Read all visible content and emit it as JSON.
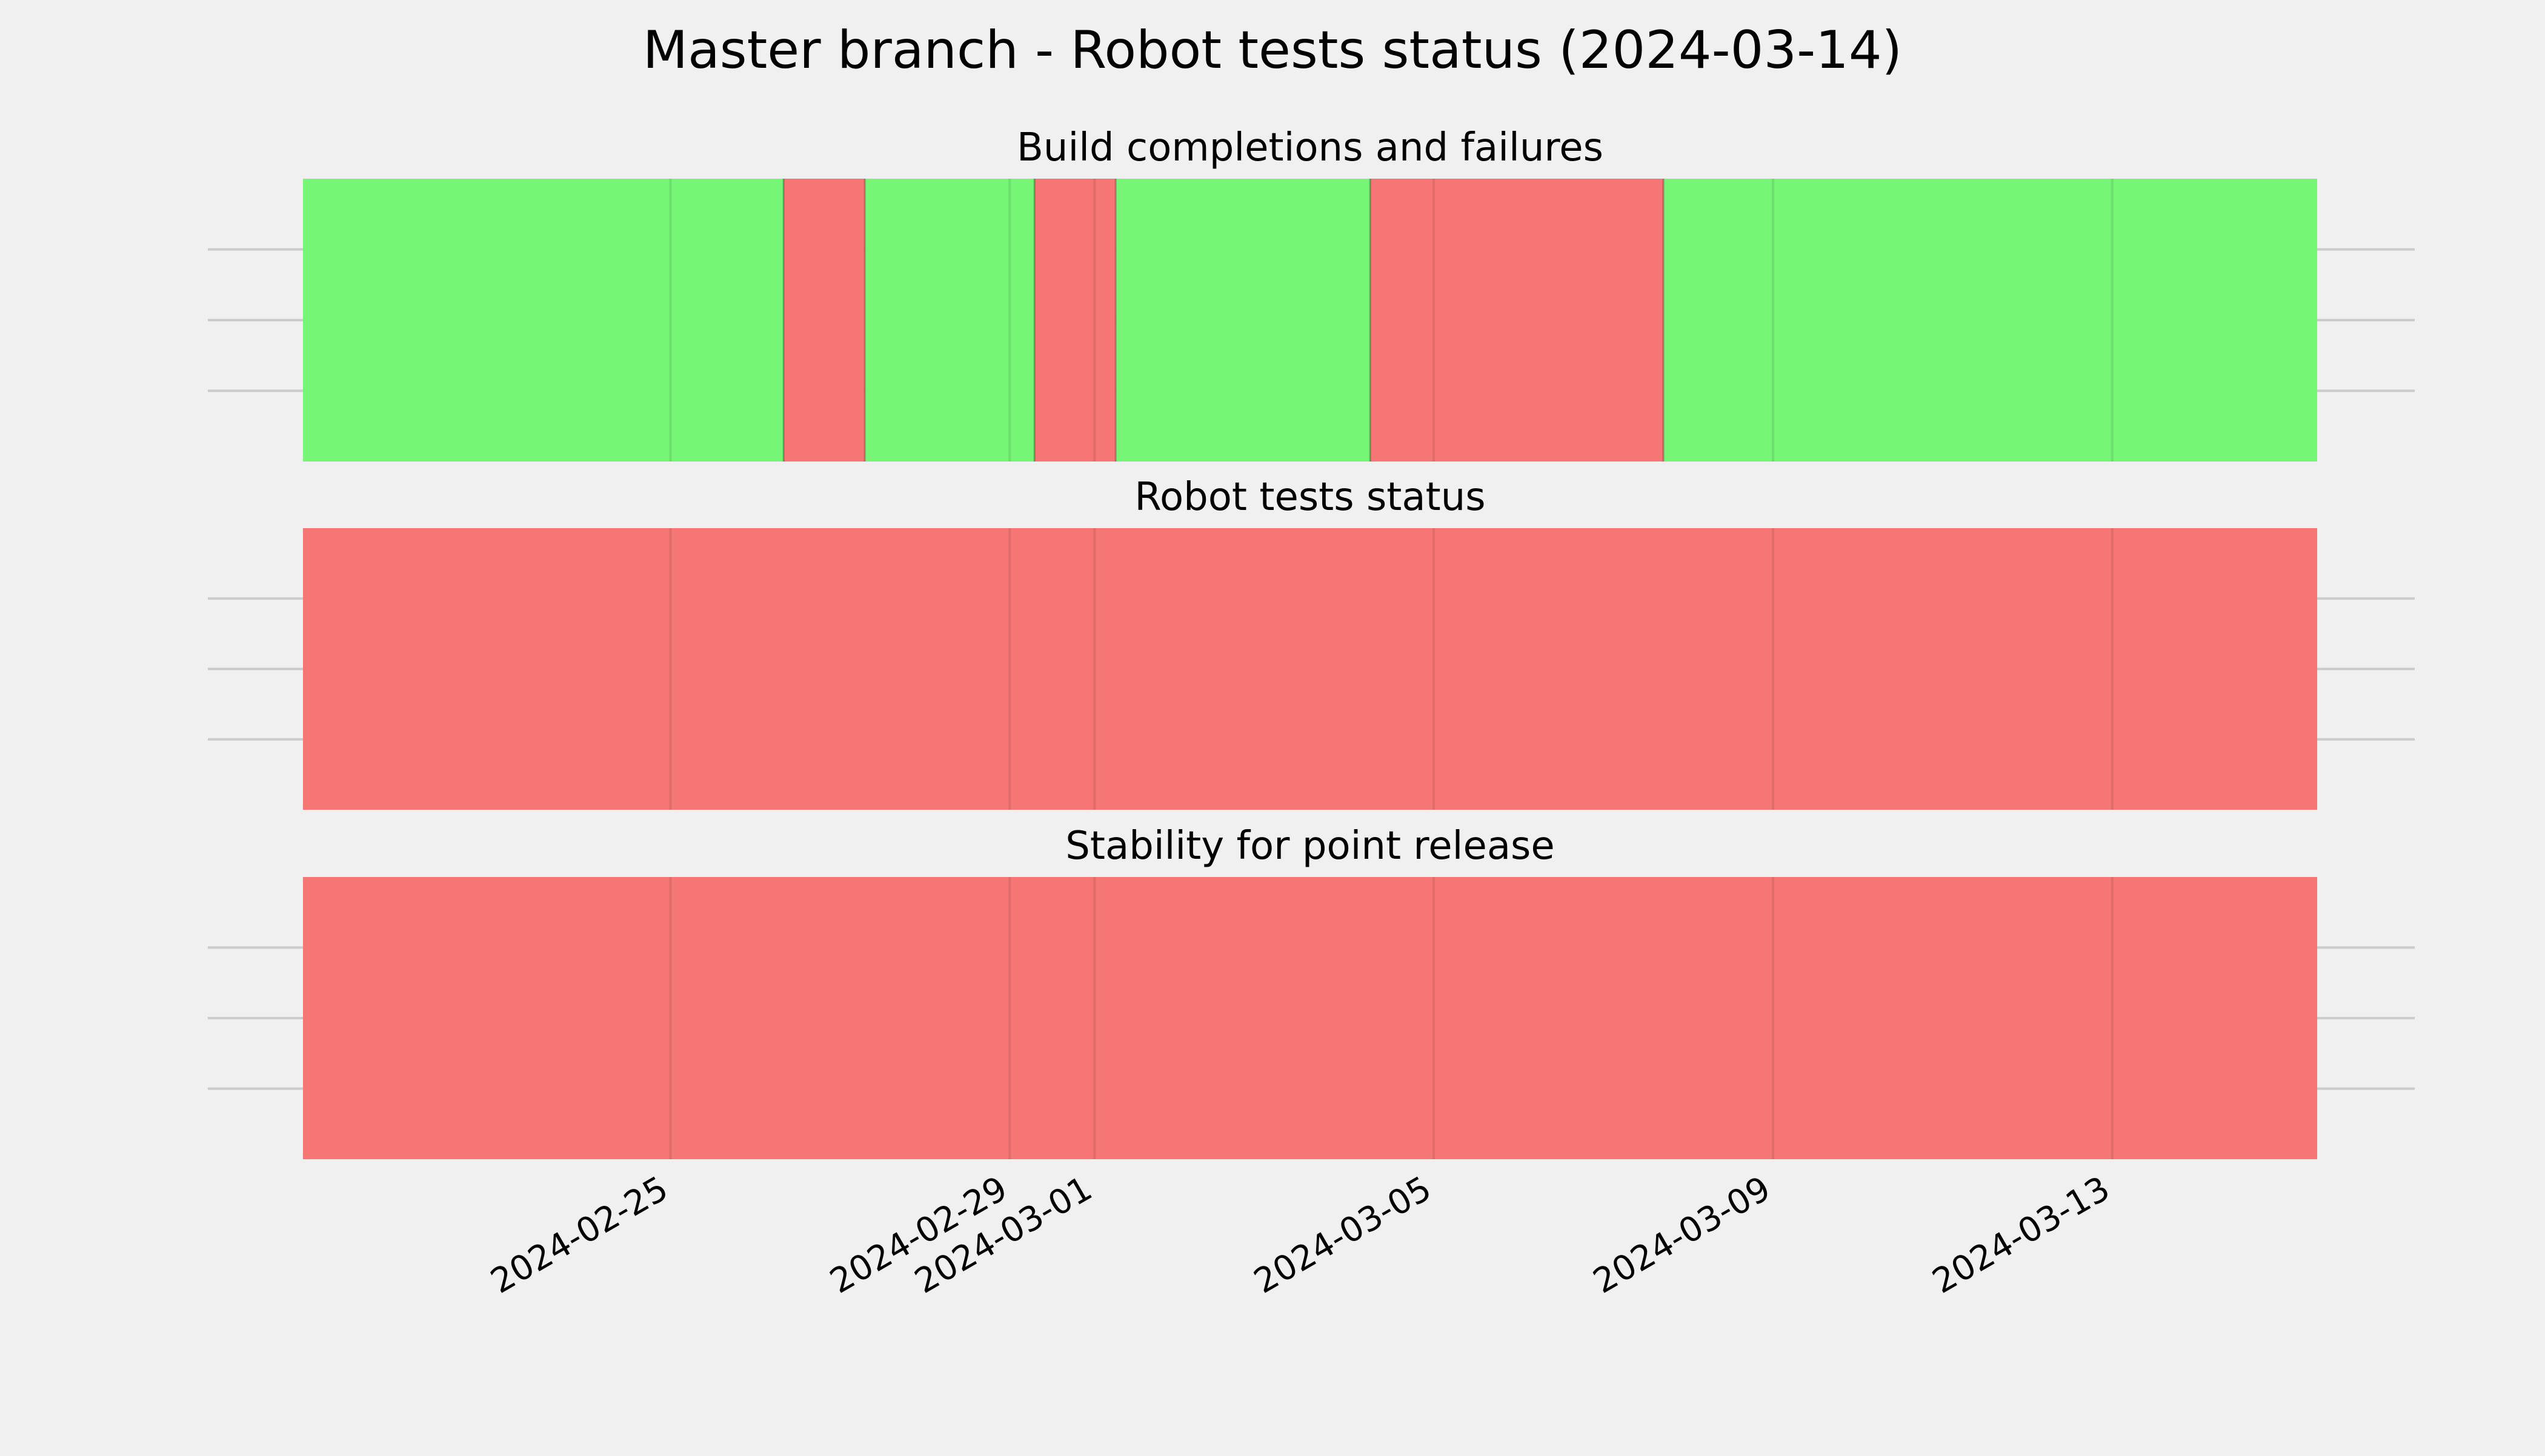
{
  "chart_data": {
    "title": "Master branch - Robot tests status (2024-03-14)",
    "type": "timeline",
    "x_axis": {
      "type": "date",
      "range": [
        "2024-02-20T16:00",
        "2024-03-15T10:00"
      ],
      "ticks": [
        "2024-02-25",
        "2024-02-29",
        "2024-03-01",
        "2024-03-05",
        "2024-03-09",
        "2024-03-13"
      ]
    },
    "colors": {
      "pass": "#76f576",
      "fail": "#f67675",
      "background": "#f0f0f0",
      "grid": "#cbcbcb"
    },
    "grid": true,
    "panels": [
      {
        "title": "Build completions and failures",
        "segments": [
          {
            "start": "2024-02-20T16:00",
            "end": "2024-02-26T08:00",
            "status": "pass"
          },
          {
            "start": "2024-02-26T08:00",
            "end": "2024-02-27T07:00",
            "status": "fail"
          },
          {
            "start": "2024-02-27T07:00",
            "end": "2024-02-29T07:00",
            "status": "pass"
          },
          {
            "start": "2024-02-29T07:00",
            "end": "2024-03-01T06:00",
            "status": "fail"
          },
          {
            "start": "2024-03-01T06:00",
            "end": "2024-03-04T06:00",
            "status": "pass"
          },
          {
            "start": "2024-03-04T06:00",
            "end": "2024-03-07T17:00",
            "status": "fail"
          },
          {
            "start": "2024-03-07T17:00",
            "end": "2024-03-15T10:00",
            "status": "pass"
          }
        ]
      },
      {
        "title": "Robot tests status",
        "segments": [
          {
            "start": "2024-02-20T16:00",
            "end": "2024-03-15T10:00",
            "status": "fail"
          }
        ]
      },
      {
        "title": "Stability for point release",
        "segments": [
          {
            "start": "2024-02-20T16:00",
            "end": "2024-03-15T10:00",
            "status": "fail"
          }
        ]
      }
    ]
  }
}
